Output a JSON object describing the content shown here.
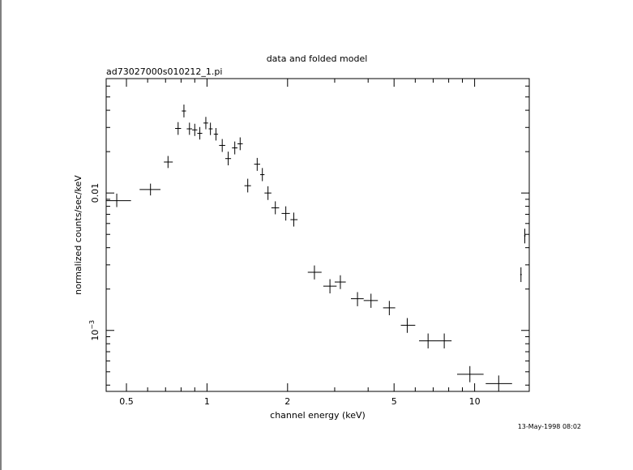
{
  "chart_data": {
    "type": "scatter",
    "title": "data and folded model",
    "subtitle": "ad73027000s010212_1.pi",
    "xlabel": "channel energy (keV)",
    "ylabel": "normalized counts/sec/keV",
    "timestamp": "13-May-1998 08:02",
    "x_scale": "log",
    "y_scale": "log",
    "xlim": [
      0.42,
      16.0
    ],
    "ylim": [
      0.00036,
      0.068
    ],
    "grid": false,
    "legend": "none",
    "x_ticks": [
      {
        "value": 0.5,
        "label": "0.5"
      },
      {
        "value": 1,
        "label": "1"
      },
      {
        "value": 2,
        "label": "2"
      },
      {
        "value": 5,
        "label": "5"
      },
      {
        "value": 10,
        "label": "10"
      }
    ],
    "y_ticks": [
      {
        "value": 0.001,
        "label_base": "10",
        "label_exp": "−3"
      },
      {
        "value": 0.01,
        "label_base": "0.01",
        "label_exp": ""
      }
    ],
    "points": [
      {
        "x": 0.46,
        "y": 0.0088,
        "xerr": [
          0.42,
          0.52
        ],
        "yerr": [
          0.0079,
          0.0099
        ]
      },
      {
        "x": 0.615,
        "y": 0.0106,
        "xerr": [
          0.56,
          0.67
        ],
        "yerr": [
          0.0096,
          0.0117
        ]
      },
      {
        "x": 0.715,
        "y": 0.0168,
        "xerr": [
          0.69,
          0.745
        ],
        "yerr": [
          0.0152,
          0.0186
        ]
      },
      {
        "x": 0.78,
        "y": 0.0295,
        "xerr": [
          0.76,
          0.8
        ],
        "yerr": [
          0.0265,
          0.0328
        ]
      },
      {
        "x": 0.82,
        "y": 0.0395,
        "xerr": [
          0.805,
          0.835
        ],
        "yerr": [
          0.0355,
          0.044
        ]
      },
      {
        "x": 0.86,
        "y": 0.0293,
        "xerr": [
          0.84,
          0.88
        ],
        "yerr": [
          0.0265,
          0.0325
        ]
      },
      {
        "x": 0.9,
        "y": 0.0288,
        "xerr": [
          0.88,
          0.92
        ],
        "yerr": [
          0.026,
          0.0319
        ]
      },
      {
        "x": 0.94,
        "y": 0.0272,
        "xerr": [
          0.92,
          0.96
        ],
        "yerr": [
          0.0245,
          0.0302
        ]
      },
      {
        "x": 0.99,
        "y": 0.0323,
        "xerr": [
          0.97,
          1.01
        ],
        "yerr": [
          0.0291,
          0.0358
        ]
      },
      {
        "x": 1.03,
        "y": 0.0293,
        "xerr": [
          1.015,
          1.05
        ],
        "yerr": [
          0.0264,
          0.0325
        ]
      },
      {
        "x": 1.08,
        "y": 0.0268,
        "xerr": [
          1.06,
          1.1
        ],
        "yerr": [
          0.0241,
          0.0297
        ]
      },
      {
        "x": 1.14,
        "y": 0.0222,
        "xerr": [
          1.11,
          1.17
        ],
        "yerr": [
          0.0199,
          0.0247
        ]
      },
      {
        "x": 1.2,
        "y": 0.0178,
        "xerr": [
          1.17,
          1.23
        ],
        "yerr": [
          0.0159,
          0.02
        ]
      },
      {
        "x": 1.27,
        "y": 0.0213,
        "xerr": [
          1.24,
          1.3
        ],
        "yerr": [
          0.0191,
          0.0237
        ]
      },
      {
        "x": 1.33,
        "y": 0.0228,
        "xerr": [
          1.3,
          1.36
        ],
        "yerr": [
          0.0205,
          0.0254
        ]
      },
      {
        "x": 1.42,
        "y": 0.0113,
        "xerr": [
          1.38,
          1.46
        ],
        "yerr": [
          0.0101,
          0.0127
        ]
      },
      {
        "x": 1.54,
        "y": 0.0162,
        "xerr": [
          1.5,
          1.58
        ],
        "yerr": [
          0.0145,
          0.018
        ]
      },
      {
        "x": 1.61,
        "y": 0.0136,
        "xerr": [
          1.58,
          1.64
        ],
        "yerr": [
          0.0122,
          0.0152
        ]
      },
      {
        "x": 1.69,
        "y": 0.01,
        "xerr": [
          1.64,
          1.74
        ],
        "yerr": [
          0.0089,
          0.0112
        ]
      },
      {
        "x": 1.8,
        "y": 0.0078,
        "xerr": [
          1.74,
          1.86
        ],
        "yerr": [
          0.007,
          0.0087
        ]
      },
      {
        "x": 1.97,
        "y": 0.0071,
        "xerr": [
          1.9,
          2.04
        ],
        "yerr": [
          0.0063,
          0.008
        ]
      },
      {
        "x": 2.11,
        "y": 0.0064,
        "xerr": [
          2.05,
          2.18
        ],
        "yerr": [
          0.0057,
          0.0072
        ]
      },
      {
        "x": 2.52,
        "y": 0.00265,
        "xerr": [
          2.38,
          2.68
        ],
        "yerr": [
          0.00235,
          0.00297
        ]
      },
      {
        "x": 2.88,
        "y": 0.0021,
        "xerr": [
          2.72,
          3.05
        ],
        "yerr": [
          0.00186,
          0.00236
        ]
      },
      {
        "x": 3.15,
        "y": 0.00225,
        "xerr": [
          3.0,
          3.3
        ],
        "yerr": [
          0.002,
          0.00252
        ]
      },
      {
        "x": 3.65,
        "y": 0.0017,
        "xerr": [
          3.45,
          3.85
        ],
        "yerr": [
          0.0015,
          0.0019
        ]
      },
      {
        "x": 4.1,
        "y": 0.00165,
        "xerr": [
          3.85,
          4.35
        ],
        "yerr": [
          0.00146,
          0.00185
        ]
      },
      {
        "x": 4.8,
        "y": 0.00146,
        "xerr": [
          4.55,
          5.05
        ],
        "yerr": [
          0.00129,
          0.00164
        ]
      },
      {
        "x": 5.6,
        "y": 0.00109,
        "xerr": [
          5.3,
          6.0
        ],
        "yerr": [
          0.00096,
          0.00123
        ]
      },
      {
        "x": 6.7,
        "y": 0.00084,
        "xerr": [
          6.2,
          7.2
        ],
        "yerr": [
          0.00074,
          0.00095
        ]
      },
      {
        "x": 7.7,
        "y": 0.00084,
        "xerr": [
          7.2,
          8.2
        ],
        "yerr": [
          0.00074,
          0.00095
        ]
      },
      {
        "x": 9.6,
        "y": 0.00048,
        "xerr": [
          8.6,
          10.8
        ],
        "yerr": [
          0.00042,
          0.00055
        ]
      },
      {
        "x": 12.3,
        "y": 0.00041,
        "xerr": [
          11.0,
          13.8
        ],
        "yerr": [
          0.00036,
          0.00047
        ]
      },
      {
        "x": 14.9,
        "y": 0.00255,
        "xerr": [
          14.8,
          15.0
        ],
        "yerr": [
          0.00225,
          0.00288
        ]
      },
      {
        "x": 15.4,
        "y": 0.00488,
        "xerr": [
          15.3,
          15.5
        ],
        "yerr": [
          0.0043,
          0.0055
        ]
      }
    ]
  }
}
